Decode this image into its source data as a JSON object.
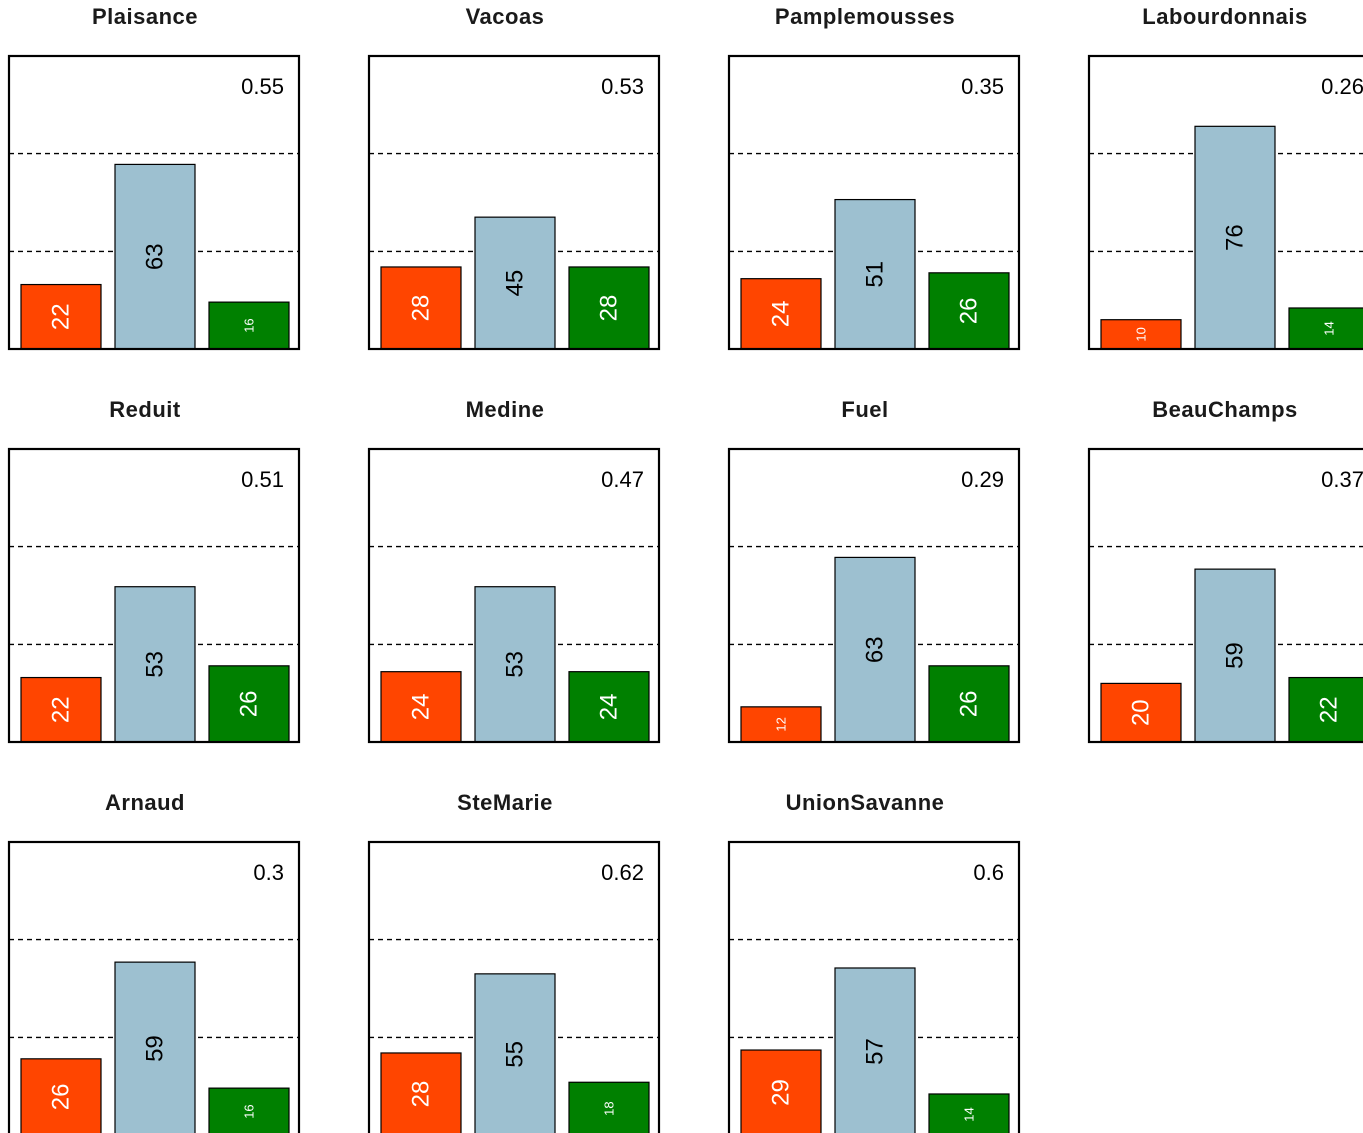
{
  "chart_data": [
    {
      "type": "bar",
      "title": "Plaisance",
      "corner_value": "0.55",
      "values": [
        22,
        63,
        16
      ],
      "ylim": [
        0,
        100
      ]
    },
    {
      "type": "bar",
      "title": "Vacoas",
      "corner_value": "0.53",
      "values": [
        28,
        45,
        28
      ],
      "ylim": [
        0,
        100
      ]
    },
    {
      "type": "bar",
      "title": "Pamplemousses",
      "corner_value": "0.35",
      "values": [
        24,
        51,
        26
      ],
      "ylim": [
        0,
        100
      ]
    },
    {
      "type": "bar",
      "title": "Labourdonnais",
      "corner_value": "0.26",
      "values": [
        10,
        76,
        14
      ],
      "ylim": [
        0,
        100
      ]
    },
    {
      "type": "bar",
      "title": "Reduit",
      "corner_value": "0.51",
      "values": [
        22,
        53,
        26
      ],
      "ylim": [
        0,
        100
      ]
    },
    {
      "type": "bar",
      "title": "Medine",
      "corner_value": "0.47",
      "values": [
        24,
        53,
        24
      ],
      "ylim": [
        0,
        100
      ]
    },
    {
      "type": "bar",
      "title": "Fuel",
      "corner_value": "0.29",
      "values": [
        12,
        63,
        26
      ],
      "ylim": [
        0,
        100
      ]
    },
    {
      "type": "bar",
      "title": "BeauChamps",
      "corner_value": "0.37",
      "values": [
        20,
        59,
        22
      ],
      "ylim": [
        0,
        100
      ]
    },
    {
      "type": "bar",
      "title": "Arnaud",
      "corner_value": "0.3",
      "values": [
        26,
        59,
        16
      ],
      "ylim": [
        0,
        100
      ]
    },
    {
      "type": "bar",
      "title": "SteMarie",
      "corner_value": "0.62",
      "values": [
        28,
        55,
        18
      ],
      "ylim": [
        0,
        100
      ]
    },
    {
      "type": "bar",
      "title": "UnionSavanne",
      "corner_value": "0.6",
      "values": [
        29,
        57,
        14
      ],
      "ylim": [
        0,
        100
      ]
    }
  ],
  "colors": {
    "bar1": "#ff4500",
    "bar2": "#9dc0d0",
    "bar3": "#008000",
    "label_on_bar1": "#ffffff",
    "label_on_bar2": "#000000",
    "label_on_bar3": "#ffffff",
    "reference_line": "#000000",
    "frame": "#000000"
  },
  "reference_lines": [
    33.3,
    66.7
  ]
}
